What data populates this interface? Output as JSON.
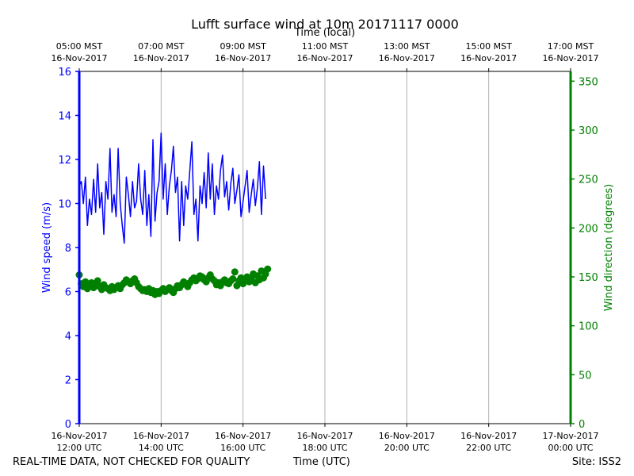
{
  "title": "Lufft surface wind at 10m 20171117 0000",
  "top_axis_label": "Time (local)",
  "footer": {
    "left": "REAL-TIME DATA, NOT CHECKED FOR QUALITY",
    "center": "Time (UTC)",
    "right": "Site: ISS2"
  },
  "colors": {
    "speed": "#0000ff",
    "direction": "#008000",
    "grid": "#b0b0b0",
    "axis": "#000000"
  },
  "chart_data": {
    "type": "line",
    "x_range_hours_utc": [
      12,
      24
    ],
    "bottom_ticks": [
      {
        "hour": 12,
        "line1": "16-Nov-2017",
        "line2": "12:00 UTC"
      },
      {
        "hour": 14,
        "line1": "16-Nov-2017",
        "line2": "14:00 UTC"
      },
      {
        "hour": 16,
        "line1": "16-Nov-2017",
        "line2": "16:00 UTC"
      },
      {
        "hour": 18,
        "line1": "16-Nov-2017",
        "line2": "18:00 UTC"
      },
      {
        "hour": 20,
        "line1": "16-Nov-2017",
        "line2": "20:00 UTC"
      },
      {
        "hour": 22,
        "line1": "16-Nov-2017",
        "line2": "22:00 UTC"
      },
      {
        "hour": 24,
        "line1": "17-Nov-2017",
        "line2": "00:00 UTC"
      }
    ],
    "top_ticks": [
      {
        "hour": 12,
        "line1": "05:00 MST",
        "line2": "16-Nov-2017"
      },
      {
        "hour": 14,
        "line1": "07:00 MST",
        "line2": "16-Nov-2017"
      },
      {
        "hour": 16,
        "line1": "09:00 MST",
        "line2": "16-Nov-2017"
      },
      {
        "hour": 18,
        "line1": "11:00 MST",
        "line2": "16-Nov-2017"
      },
      {
        "hour": 20,
        "line1": "13:00 MST",
        "line2": "16-Nov-2017"
      },
      {
        "hour": 22,
        "line1": "15:00 MST",
        "line2": "16-Nov-2017"
      },
      {
        "hour": 24,
        "line1": "17:00 MST",
        "line2": "16-Nov-2017"
      }
    ],
    "left_axis": {
      "label": "Wind speed (m/s)",
      "ylim": [
        0,
        16
      ],
      "ticks": [
        0,
        2,
        4,
        6,
        8,
        10,
        12,
        14,
        16
      ]
    },
    "right_axis": {
      "label": "Wind direction (degrees)",
      "ylim": [
        0,
        360
      ],
      "ticks": [
        0,
        50,
        100,
        150,
        200,
        250,
        300,
        350
      ]
    },
    "grid": "vertical",
    "series": [
      {
        "axis": "left",
        "style": "line",
        "x_hours": [
          12.0,
          12.05,
          12.1,
          12.15,
          12.2,
          12.25,
          12.3,
          12.35,
          12.4,
          12.45,
          12.5,
          12.55,
          12.6,
          12.65,
          12.7,
          12.75,
          12.8,
          12.85,
          12.9,
          12.95,
          13.0,
          13.05,
          13.1,
          13.15,
          13.2,
          13.25,
          13.3,
          13.35,
          13.4,
          13.45,
          13.5,
          13.55,
          13.6,
          13.65,
          13.7,
          13.75,
          13.8,
          13.85,
          13.9,
          13.95,
          14.0,
          14.05,
          14.1,
          14.15,
          14.2,
          14.25,
          14.3,
          14.35,
          14.4,
          14.45,
          14.5,
          14.55,
          14.6,
          14.65,
          14.7,
          14.75,
          14.8,
          14.85,
          14.9,
          14.95,
          15.0,
          15.05,
          15.1,
          15.15,
          15.2,
          15.25,
          15.3,
          15.35,
          15.4,
          15.45,
          15.5,
          15.55,
          15.6,
          15.65,
          15.7,
          15.75,
          15.8,
          15.85,
          15.9,
          15.95,
          16.0,
          16.05,
          16.1,
          16.15,
          16.2,
          16.25,
          16.3,
          16.35,
          16.4,
          16.45,
          16.5,
          16.55
        ],
        "values": [
          10.8,
          11.0,
          10.0,
          11.2,
          9.0,
          10.2,
          9.5,
          11.1,
          9.6,
          11.8,
          9.8,
          10.5,
          8.6,
          11.0,
          10.2,
          12.5,
          9.6,
          10.4,
          9.4,
          12.5,
          10.0,
          9.0,
          8.2,
          11.2,
          10.4,
          9.4,
          11.0,
          9.8,
          10.1,
          11.8,
          10.2,
          9.5,
          11.5,
          9.0,
          10.4,
          8.5,
          12.9,
          9.2,
          10.5,
          11.0,
          13.2,
          10.2,
          11.8,
          9.5,
          10.8,
          11.5,
          12.6,
          10.5,
          11.2,
          8.3,
          11.0,
          9.0,
          10.8,
          10.2,
          11.5,
          12.8,
          9.5,
          10.2,
          8.3,
          10.8,
          10.0,
          11.4,
          9.8,
          12.3,
          10.2,
          11.8,
          9.5,
          10.8,
          10.2,
          11.5,
          12.2,
          10.3,
          11.0,
          9.7,
          10.9,
          11.6,
          10.0,
          10.6,
          11.3,
          9.4,
          10.1,
          10.8,
          11.5,
          9.6,
          10.4,
          11.1,
          9.9,
          10.7,
          11.9,
          9.5,
          11.7,
          10.2
        ]
      },
      {
        "axis": "right",
        "style": "markers",
        "x_hours": [
          12.0,
          12.05,
          12.1,
          12.15,
          12.2,
          12.25,
          12.3,
          12.35,
          12.4,
          12.45,
          12.5,
          12.55,
          12.6,
          12.65,
          12.7,
          12.75,
          12.8,
          12.85,
          12.9,
          12.95,
          13.0,
          13.05,
          13.1,
          13.15,
          13.2,
          13.25,
          13.3,
          13.35,
          13.4,
          13.45,
          13.5,
          13.55,
          13.6,
          13.65,
          13.7,
          13.75,
          13.8,
          13.85,
          13.9,
          13.95,
          14.0,
          14.05,
          14.1,
          14.15,
          14.2,
          14.25,
          14.3,
          14.35,
          14.4,
          14.45,
          14.5,
          14.55,
          14.6,
          14.65,
          14.7,
          14.75,
          14.8,
          14.85,
          14.9,
          14.95,
          15.0,
          15.05,
          15.1,
          15.15,
          15.2,
          15.25,
          15.3,
          15.35,
          15.4,
          15.45,
          15.5,
          15.55,
          15.6,
          15.65,
          15.7,
          15.75,
          15.8,
          15.85,
          15.9,
          15.95,
          16.0,
          16.05,
          16.1,
          16.15,
          16.2,
          16.25,
          16.3,
          16.35,
          16.4,
          16.45,
          16.5,
          16.55,
          16.6
        ],
        "values": [
          152,
          143,
          140,
          145,
          138,
          141,
          144,
          139,
          142,
          146,
          140,
          137,
          142,
          139,
          138,
          136,
          140,
          137,
          139,
          141,
          138,
          142,
          144,
          147,
          145,
          143,
          146,
          148,
          144,
          140,
          138,
          136,
          137,
          135,
          138,
          134,
          136,
          132,
          135,
          133,
          136,
          138,
          135,
          137,
          139,
          136,
          134,
          138,
          141,
          139,
          142,
          145,
          143,
          140,
          144,
          147,
          149,
          146,
          148,
          151,
          150,
          147,
          145,
          149,
          152,
          148,
          146,
          142,
          144,
          141,
          145,
          147,
          144,
          143,
          146,
          148,
          155,
          141,
          146,
          149,
          143,
          147,
          150,
          145,
          148,
          153,
          144,
          151,
          147,
          156,
          149,
          153,
          158
        ]
      }
    ]
  }
}
